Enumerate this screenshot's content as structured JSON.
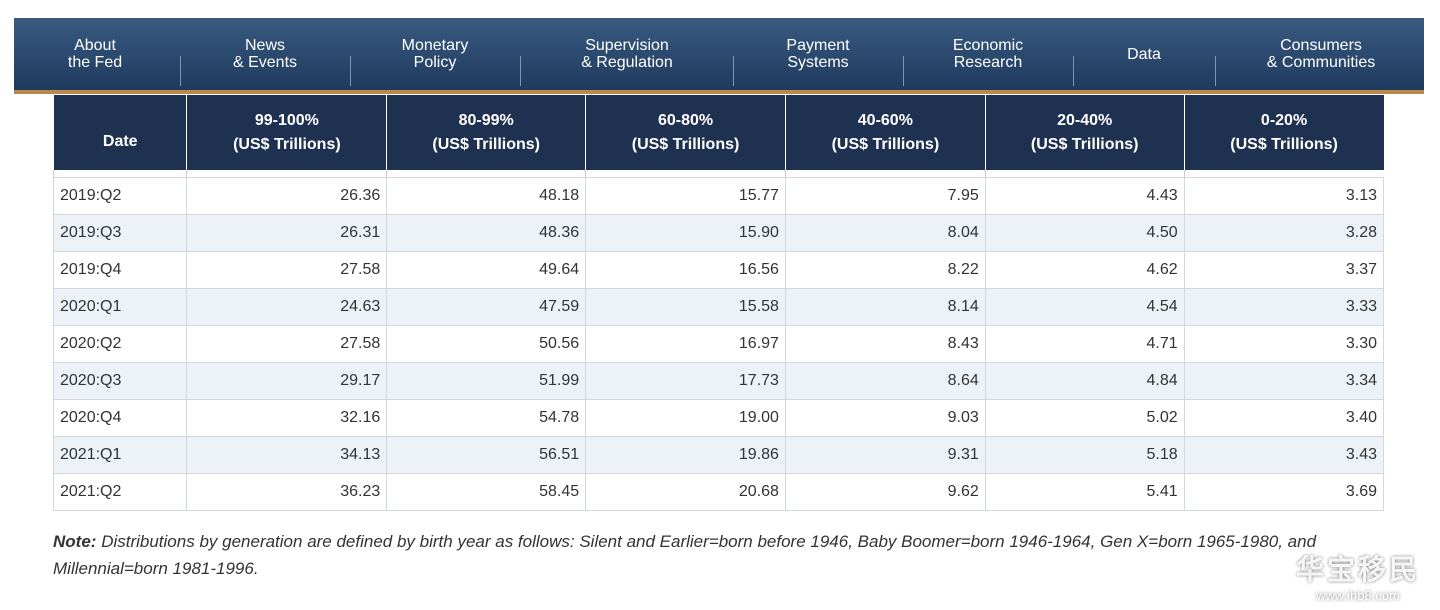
{
  "nav": [
    {
      "lines": [
        "About",
        "the Fed"
      ]
    },
    {
      "lines": [
        "News",
        "& Events"
      ]
    },
    {
      "lines": [
        "Monetary",
        "Policy"
      ]
    },
    {
      "lines": [
        "Supervision",
        "& Regulation"
      ]
    },
    {
      "lines": [
        "Payment",
        "Systems"
      ]
    },
    {
      "lines": [
        "Economic",
        "Research"
      ]
    },
    {
      "lines": [
        "Data"
      ]
    },
    {
      "lines": [
        "Consumers",
        "& Communities"
      ]
    }
  ],
  "table": {
    "header": [
      {
        "lines": [
          "Date"
        ]
      },
      {
        "lines": [
          "99-100%",
          "(US$ Trillions)"
        ]
      },
      {
        "lines": [
          "80-99%",
          "(US$ Trillions)"
        ]
      },
      {
        "lines": [
          "60-80%",
          "(US$ Trillions)"
        ]
      },
      {
        "lines": [
          "40-60%",
          "(US$ Trillions)"
        ]
      },
      {
        "lines": [
          "20-40%",
          "(US$ Trillions)"
        ]
      },
      {
        "lines": [
          "0-20%",
          "(US$ Trillions)"
        ]
      }
    ],
    "rows": [
      [
        "2019:Q2",
        "26.36",
        "48.18",
        "15.77",
        "7.95",
        "4.43",
        "3.13"
      ],
      [
        "2019:Q3",
        "26.31",
        "48.36",
        "15.90",
        "8.04",
        "4.50",
        "3.28"
      ],
      [
        "2019:Q4",
        "27.58",
        "49.64",
        "16.56",
        "8.22",
        "4.62",
        "3.37"
      ],
      [
        "2020:Q1",
        "24.63",
        "47.59",
        "15.58",
        "8.14",
        "4.54",
        "3.33"
      ],
      [
        "2020:Q2",
        "27.58",
        "50.56",
        "16.97",
        "8.43",
        "4.71",
        "3.30"
      ],
      [
        "2020:Q3",
        "29.17",
        "51.99",
        "17.73",
        "8.64",
        "4.84",
        "3.34"
      ],
      [
        "2020:Q4",
        "32.16",
        "54.78",
        "19.00",
        "9.03",
        "5.02",
        "3.40"
      ],
      [
        "2021:Q1",
        "34.13",
        "56.51",
        "19.86",
        "9.31",
        "5.18",
        "3.43"
      ],
      [
        "2021:Q2",
        "36.23",
        "58.45",
        "20.68",
        "9.62",
        "5.41",
        "3.69"
      ]
    ]
  },
  "note": {
    "label": "Note:",
    "text": "Distributions by generation are defined by birth year as follows: Silent and Earlier=born before 1946, Baby Boomer=born 1946-1964, Gen X=born 1965-1980, and Millennial=born 1981-1996."
  },
  "watermark": {
    "title": "华宝移民",
    "url": "www.ihb8.com"
  }
}
